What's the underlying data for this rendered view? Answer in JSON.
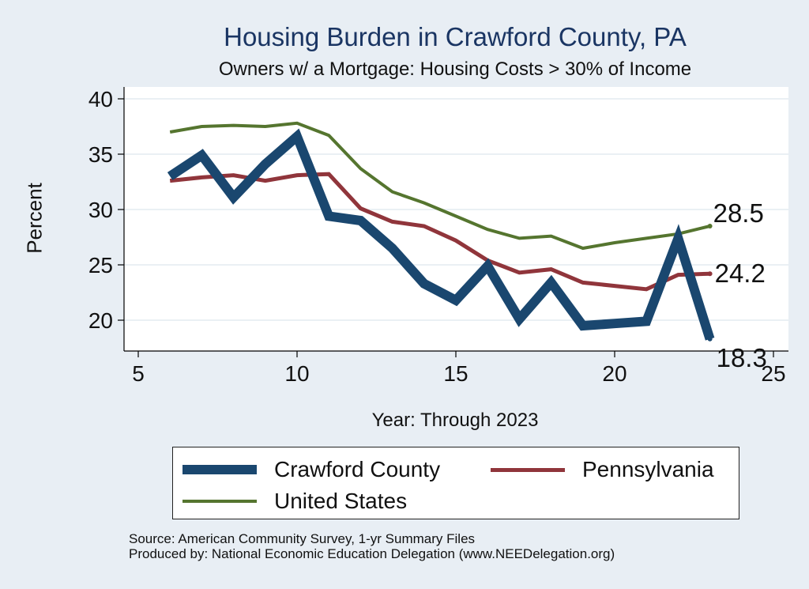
{
  "chart_data": {
    "type": "line",
    "title": "Housing Burden in Crawford County, PA",
    "subtitle": "Owners w/ a Mortgage: Housing Costs > 30% of Income",
    "xlabel": "Year: Through 2023",
    "ylabel": "Percent",
    "xlim": [
      5,
      25
    ],
    "ylim": [
      17,
      41
    ],
    "xticks": [
      5,
      10,
      15,
      20,
      25
    ],
    "yticks": [
      20,
      25,
      30,
      35,
      40
    ],
    "grid": true,
    "legend_position": "bottom",
    "series": [
      {
        "name": "Crawford County",
        "color": "#1a476f",
        "x": [
          6,
          7,
          8,
          9,
          10,
          11,
          12,
          13,
          14,
          15,
          16,
          17,
          18,
          19,
          20,
          21,
          22,
          23
        ],
        "values": [
          33.0,
          34.9,
          31.1,
          34.1,
          36.6,
          29.4,
          29.0,
          26.5,
          23.3,
          21.8,
          24.9,
          20.1,
          23.4,
          19.5,
          19.7,
          19.9,
          27.4,
          18.3
        ],
        "end_label": "18.3"
      },
      {
        "name": "Pennsylvania",
        "color": "#90353b",
        "x": [
          6,
          7,
          8,
          9,
          10,
          11,
          12,
          13,
          14,
          15,
          16,
          17,
          18,
          19,
          20,
          21,
          22,
          23
        ],
        "values": [
          32.6,
          32.9,
          33.1,
          32.6,
          33.1,
          33.2,
          30.1,
          28.9,
          28.5,
          27.2,
          25.4,
          24.3,
          24.6,
          23.4,
          23.1,
          22.8,
          24.1,
          24.2
        ],
        "end_label": "24.2"
      },
      {
        "name": "United States",
        "color": "#55752f",
        "x": [
          6,
          7,
          8,
          9,
          10,
          11,
          12,
          13,
          14,
          15,
          16,
          17,
          18,
          19,
          20,
          21,
          22,
          23
        ],
        "values": [
          37.0,
          37.5,
          37.6,
          37.5,
          37.8,
          36.7,
          33.7,
          31.6,
          30.6,
          29.4,
          28.2,
          27.4,
          27.6,
          26.5,
          27.0,
          27.4,
          27.8,
          28.5
        ],
        "end_label": "28.5"
      }
    ]
  },
  "notes": {
    "source": "Source: American Community Survey, 1-yr Summary Files",
    "produced": "Produced by: National Economic Education Delegation (www.NEEDelegation.org)"
  }
}
